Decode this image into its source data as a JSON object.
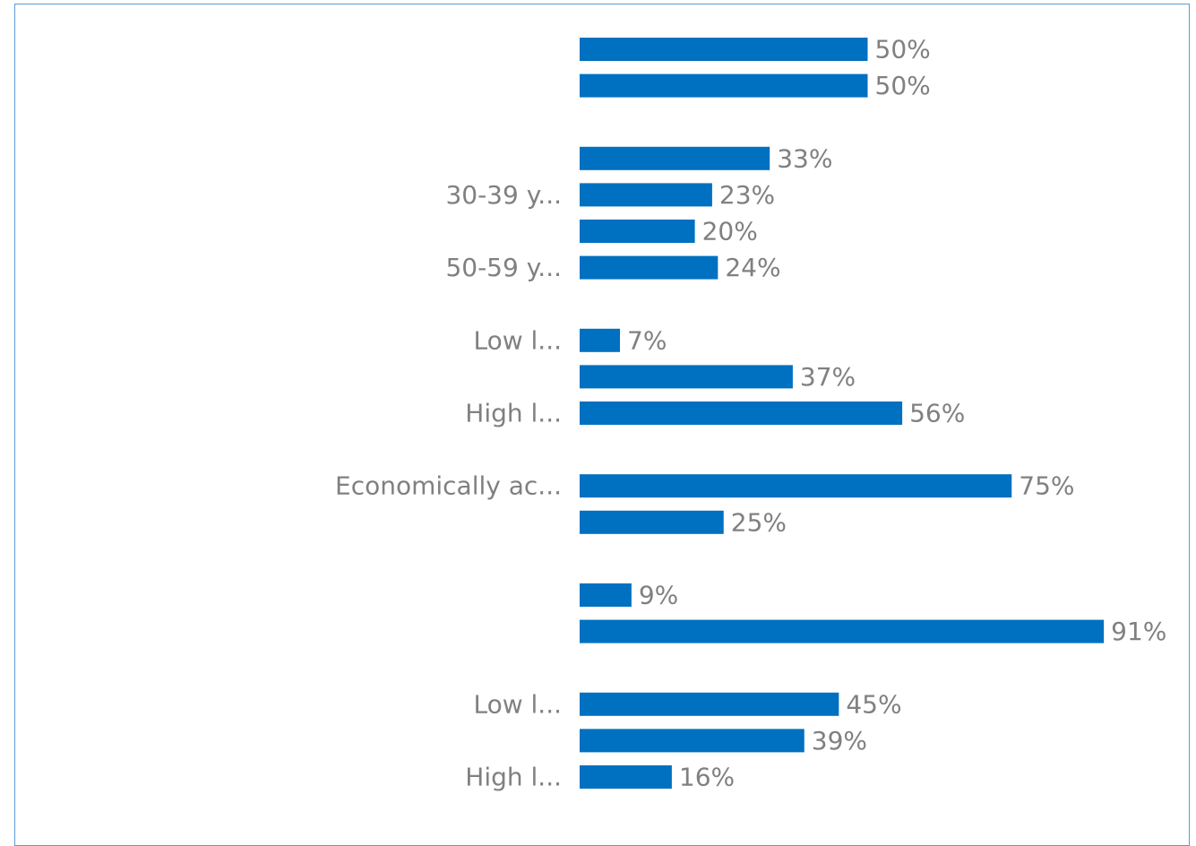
{
  "chart_data": {
    "type": "bar",
    "orientation": "horizontal",
    "bar_color": "#0070c0",
    "label_color": "#808080",
    "border_color": "#5b9bd5",
    "value_suffix": "%",
    "xlim": [
      0,
      100
    ],
    "grid": false,
    "legend": "none",
    "groups": [
      {
        "bars": [
          {
            "label": "",
            "value": 50
          },
          {
            "label": "",
            "value": 50
          }
        ]
      },
      {
        "bars": [
          {
            "label": "",
            "value": 33
          },
          {
            "label": "30-39 y...",
            "value": 23
          },
          {
            "label": "",
            "value": 20
          },
          {
            "label": "50-59 y...",
            "value": 24
          }
        ]
      },
      {
        "bars": [
          {
            "label": "Low l...",
            "value": 7
          },
          {
            "label": "",
            "value": 37
          },
          {
            "label": "High l...",
            "value": 56
          }
        ]
      },
      {
        "bars": [
          {
            "label": "Economically ac...",
            "value": 75
          },
          {
            "label": "",
            "value": 25
          }
        ]
      },
      {
        "bars": [
          {
            "label": "",
            "value": 9
          },
          {
            "label": "",
            "value": 91
          }
        ]
      },
      {
        "bars": [
          {
            "label": "Low l...",
            "value": 45
          },
          {
            "label": "",
            "value": 39
          },
          {
            "label": "High l...",
            "value": 16
          }
        ]
      }
    ]
  }
}
